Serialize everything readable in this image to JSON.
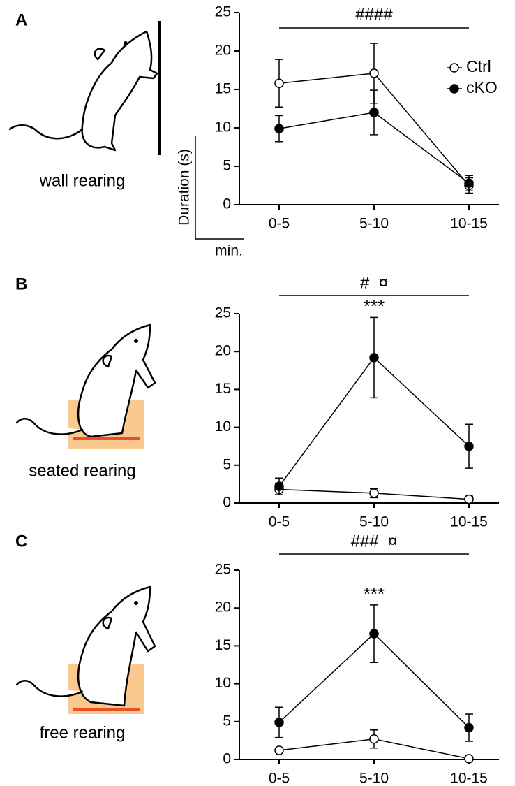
{
  "chart_data": [
    {
      "type": "line",
      "panel_label": "A",
      "drawing_label": "wall rearing",
      "ylabel": "Duration (s)",
      "xlabel": "min.",
      "categories": [
        "0-5",
        "5-10",
        "10-15"
      ],
      "series": [
        {
          "name": "Ctrl",
          "color": "#000000",
          "fill": "#ffffff",
          "values": [
            15.8,
            17.1,
            2.5
          ],
          "errors": [
            3.1,
            3.9,
            1.0
          ]
        },
        {
          "name": "cKO",
          "color": "#000000",
          "fill": "#000000",
          "values": [
            9.9,
            12.0,
            2.8
          ],
          "errors": [
            1.7,
            2.9,
            1.0
          ]
        }
      ],
      "bracket_label": "####",
      "ylim": [
        0,
        25
      ],
      "yticks": [
        0,
        5,
        10,
        15,
        20,
        25
      ]
    },
    {
      "type": "line",
      "panel_label": "B",
      "drawing_label": "seated rearing",
      "categories": [
        "0-5",
        "5-10",
        "10-15"
      ],
      "series": [
        {
          "color": "#000000",
          "fill": "#ffffff",
          "values": [
            1.8,
            1.3,
            0.5
          ],
          "errors": [
            0.7,
            0.6,
            0.4
          ]
        },
        {
          "color": "#000000",
          "fill": "#000000",
          "values": [
            2.2,
            19.2,
            7.5
          ],
          "errors": [
            1.1,
            5.3,
            2.9
          ]
        }
      ],
      "bracket_label": "#  ¤",
      "star_label": "***",
      "ylim": [
        0,
        25
      ],
      "yticks": [
        0,
        5,
        10,
        15,
        20,
        25
      ]
    },
    {
      "type": "line",
      "panel_label": "C",
      "drawing_label": "free rearing",
      "categories": [
        "0-5",
        "5-10",
        "10-15"
      ],
      "series": [
        {
          "color": "#000000",
          "fill": "#ffffff",
          "values": [
            1.2,
            2.7,
            0.1
          ],
          "errors": [
            0.3,
            1.2,
            0.2
          ]
        },
        {
          "color": "#000000",
          "fill": "#000000",
          "values": [
            4.9,
            16.6,
            4.2
          ],
          "errors": [
            2.0,
            3.8,
            1.8
          ]
        }
      ],
      "bracket_label": "###  ¤",
      "star_label": "***",
      "ylim": [
        0,
        25
      ],
      "yticks": [
        0,
        5,
        10,
        15,
        20,
        25
      ]
    }
  ]
}
